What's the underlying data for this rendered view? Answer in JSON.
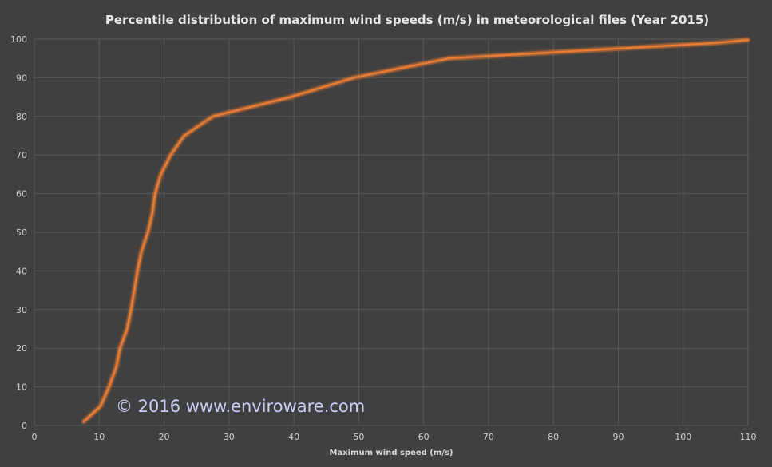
{
  "chart_data": {
    "type": "line",
    "title": "Percentile distribution of maximum wind speeds (m/s) in meteorological files (Year 2015)",
    "xlabel": "Maximum wind speed (m/s)",
    "ylabel": "",
    "xlim": [
      0,
      110
    ],
    "ylim": [
      0,
      100
    ],
    "x_ticks": [
      0,
      10,
      20,
      30,
      40,
      50,
      60,
      70,
      80,
      90,
      100,
      110
    ],
    "y_ticks": [
      0,
      10,
      20,
      30,
      40,
      50,
      60,
      70,
      80,
      90,
      100
    ],
    "grid": true,
    "legend": "none",
    "series": [
      {
        "color": "#ed7d31",
        "points": [
          [
            7.6,
            1
          ],
          [
            10.2,
            5
          ],
          [
            11.5,
            10
          ],
          [
            12.6,
            15
          ],
          [
            13.2,
            20
          ],
          [
            14.3,
            25
          ],
          [
            14.9,
            30
          ],
          [
            15.4,
            35
          ],
          [
            15.9,
            40
          ],
          [
            16.5,
            45
          ],
          [
            17.5,
            50
          ],
          [
            18.2,
            55
          ],
          [
            18.6,
            60
          ],
          [
            19.5,
            65
          ],
          [
            21,
            70
          ],
          [
            23.1,
            75
          ],
          [
            27.5,
            80
          ],
          [
            39.5,
            85
          ],
          [
            49.2,
            90
          ],
          [
            63.9,
            95
          ],
          [
            105,
            99
          ],
          [
            110,
            99.8
          ]
        ]
      }
    ]
  },
  "watermark": "© 2016  www.enviroware.com"
}
